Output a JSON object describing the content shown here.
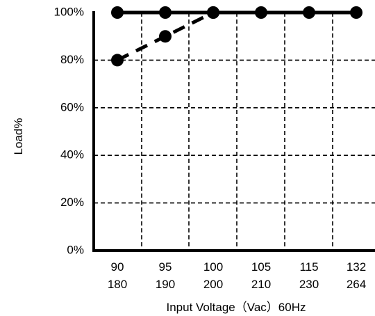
{
  "chart_data": {
    "type": "line",
    "title": "",
    "xlabel": "Input Voltage（Vac）60Hz",
    "ylabel": "Load%",
    "ylim": [
      0,
      100
    ],
    "grid": true,
    "x": [
      {
        "line1": "90",
        "line2": "180"
      },
      {
        "line1": "95",
        "line2": "190"
      },
      {
        "line1": "100",
        "line2": "200"
      },
      {
        "line1": "105",
        "line2": "210"
      },
      {
        "line1": "115",
        "line2": "230"
      },
      {
        "line1": "132",
        "line2": "264"
      }
    ],
    "y_ticks": [
      "0%",
      "20%",
      "40%",
      "60%",
      "80%",
      "100%"
    ],
    "series": [
      {
        "style": "solid",
        "values": [
          100,
          100,
          100,
          100,
          100,
          100
        ],
        "color": "#000000"
      },
      {
        "style": "dashed",
        "values": [
          80,
          90,
          100,
          null,
          null,
          null
        ],
        "color": "#000000"
      }
    ]
  }
}
